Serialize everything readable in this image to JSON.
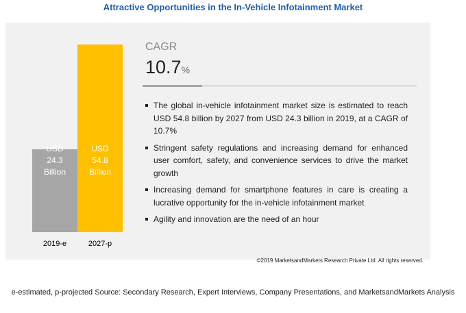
{
  "title": "Attractive Opportunities in the In-Vehicle Infotainment Market",
  "chart_data": {
    "type": "bar",
    "categories": [
      "2019-e",
      "2027-p"
    ],
    "values": [
      24.3,
      54.8
    ],
    "data_labels": [
      [
        "USD",
        "24.3",
        "Billion"
      ],
      [
        "USD",
        "54.8",
        "Billion"
      ]
    ],
    "colors": [
      "#a6a6a6",
      "#ffc000"
    ]
  },
  "cagr": {
    "label": "CAGR",
    "value": "10.7",
    "unit": "%"
  },
  "bullets": [
    "The global in-vehicle infotainment market size is estimated to reach USD 54.8 billion by 2027 from USD 24.3 billion in 2019, at a CAGR of 10.7%",
    "Stringent safety regulations and increasing demand for enhanced user comfort, safety, and convenience services to drive the market growth",
    "Increasing demand for smartphone features in care is creating a lucrative opportunity for the in-vehicle infotainment market",
    "Agility and innovation are the need of an hour"
  ],
  "copyright": "©2019 MarketsandMarkets Research Private Ltd. All rights reserved.",
  "footer": "e-estimated, p-projected Source: Secondary Research, Expert Interviews, Company Presentations, and MarketsandMarkets Analysis"
}
